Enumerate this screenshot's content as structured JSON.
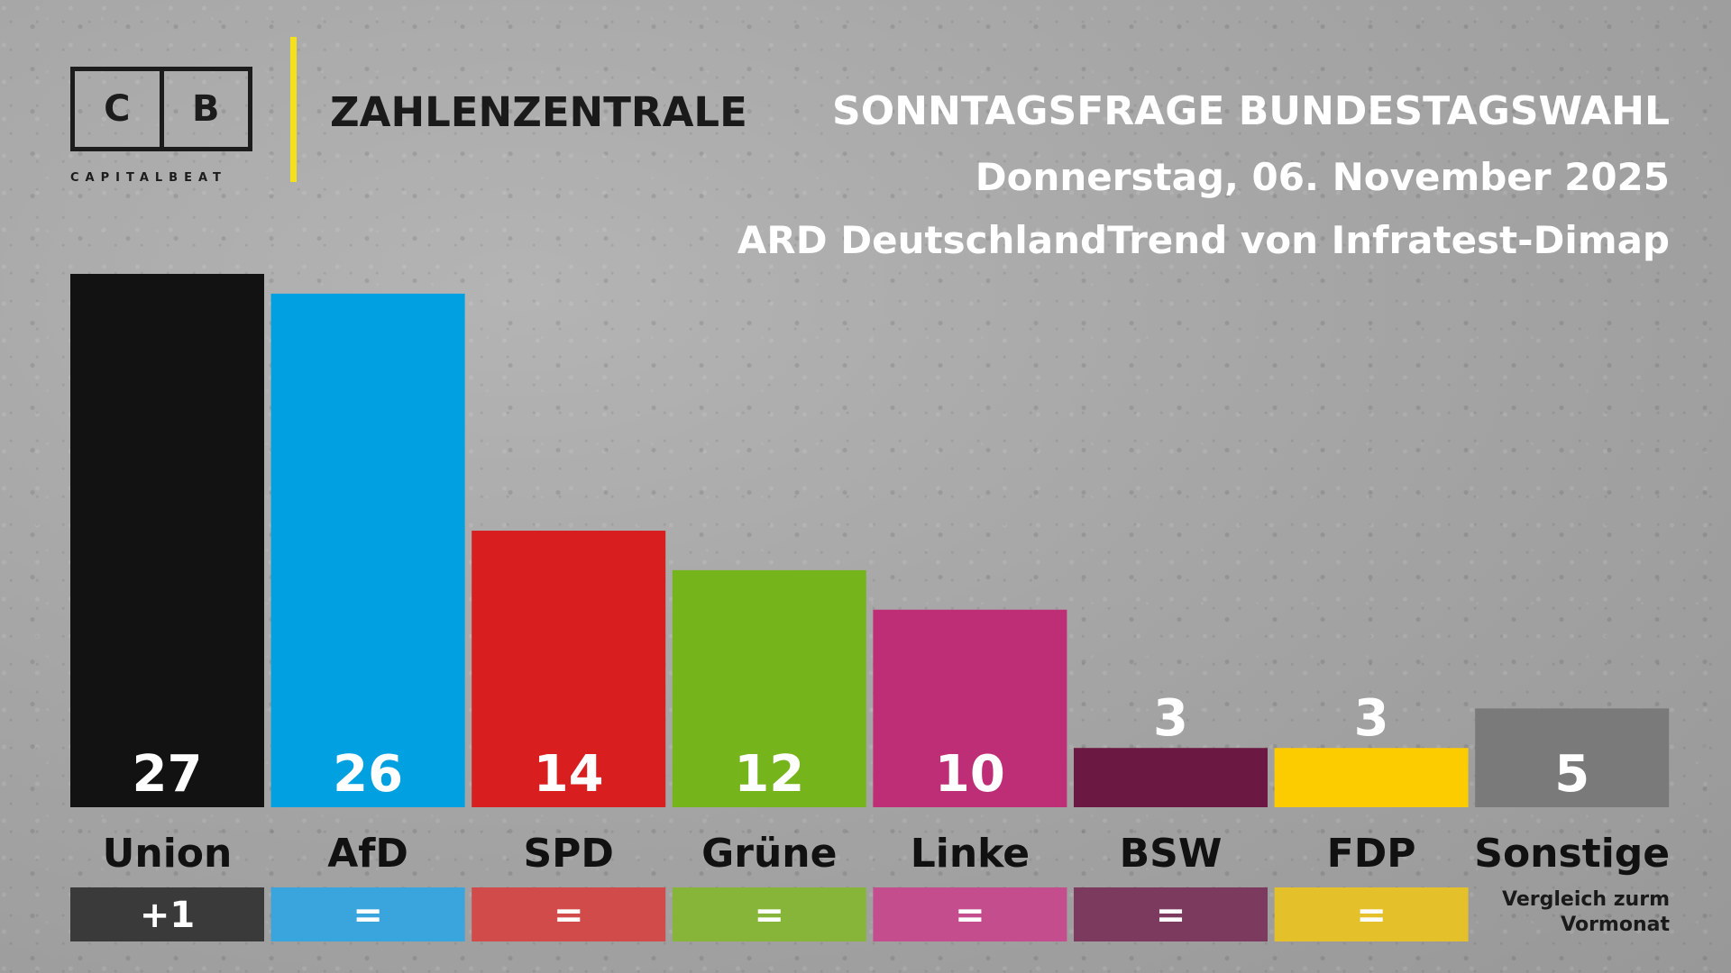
{
  "brand": {
    "logo_left": "C",
    "logo_right": "B",
    "logo_subtitle": "CAPITALBEAT",
    "section": "ZAHLENZENTRALE",
    "accent": "#f4e11b"
  },
  "header": {
    "title": "SONNTAGSFRAGE BUNDESTAGSWAHL",
    "date": "Donnerstag, 06. November 2025",
    "source": "ARD DeutschlandTrend von Infratest-Dimap"
  },
  "chart_data": {
    "type": "bar",
    "categories": [
      "Union",
      "AfD",
      "SPD",
      "Grüne",
      "Linke",
      "BSW",
      "FDP",
      "Sonstige"
    ],
    "values": [
      27,
      26,
      14,
      12,
      10,
      3,
      3,
      5
    ],
    "value_labels": [
      "27",
      "26",
      "14",
      "12",
      "10",
      "3",
      "3",
      "5"
    ],
    "colors": [
      "#121212",
      "#00a0e1",
      "#d81e1e",
      "#76b41c",
      "#be2e77",
      "#6b1842",
      "#fccb00",
      "#7a7a7a"
    ],
    "change_labels": [
      "+1",
      "=",
      "=",
      "=",
      "=",
      "=",
      "=",
      ""
    ],
    "change_colors": [
      "#3a3a3a",
      "#3aa4dc",
      "#d14b4b",
      "#86b53a",
      "#c44d8d",
      "#7c3b5e",
      "#e4c12a",
      ""
    ],
    "change_note": [
      "Vergleich zurm",
      "Vormonat"
    ],
    "ylim": [
      0,
      27
    ],
    "grid": false,
    "legend": "none"
  }
}
